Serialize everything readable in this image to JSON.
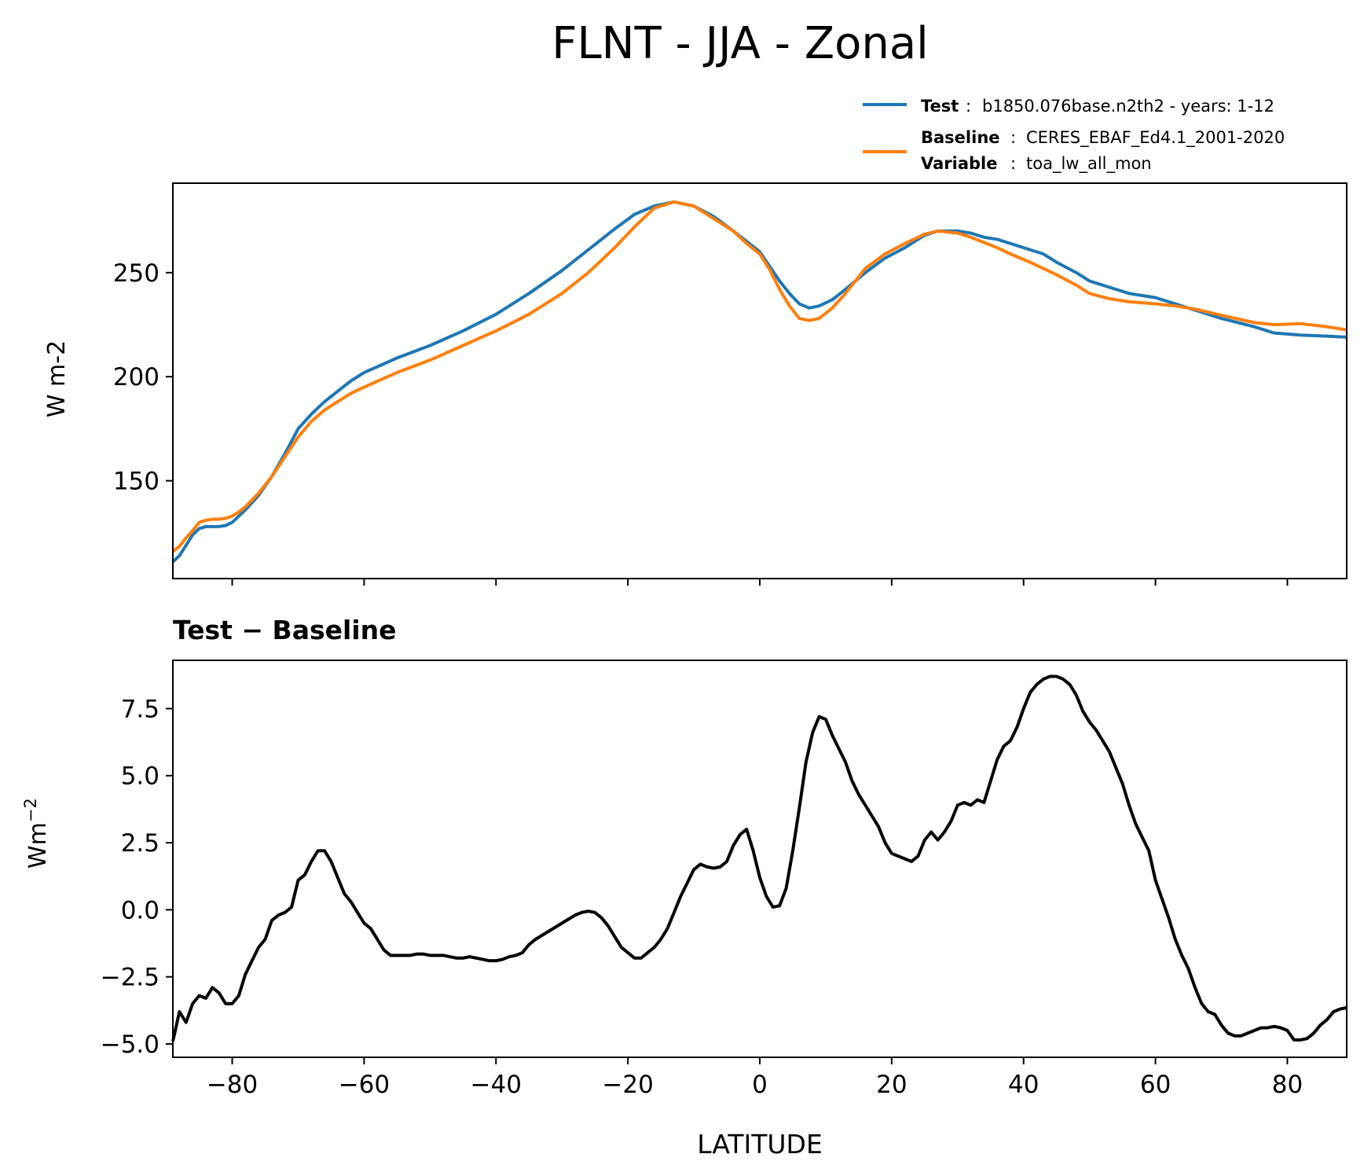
{
  "figure": {
    "title": "FLNT - JJA - Zonal"
  },
  "legend": {
    "test_label": "Test",
    "test_value": "b1850.076base.n2th2 - years: 1-12",
    "baseline_label": "Baseline",
    "baseline_value": "CERES_EBAF_Ed4.1_2001-2020",
    "variable_label": "Variable",
    "variable_value": "toa_lw_all_mon"
  },
  "colors": {
    "test": "#1f77b4",
    "baseline": "#ff7f0e",
    "diff": "#000000"
  },
  "chart_data": [
    {
      "type": "line",
      "title": "",
      "xlabel": "",
      "ylabel": "W m-2",
      "xlim": [
        -89,
        89
      ],
      "ylim": [
        103,
        293
      ],
      "yticks": [
        150,
        200,
        250
      ],
      "ytick_labels": [
        "150",
        "200",
        "250"
      ],
      "xticks": [
        -80,
        -60,
        -40,
        -20,
        0,
        20,
        40,
        60,
        80
      ],
      "grid": false,
      "legend_position": "above-right",
      "series": [
        {
          "name": "Test",
          "x": [
            -89,
            -88,
            -87,
            -86,
            -85,
            -84,
            -83,
            -82,
            -81,
            -80,
            -79,
            -78,
            -76,
            -74,
            -72,
            -70,
            -68,
            -66,
            -64,
            -62,
            -60,
            -55,
            -50,
            -45,
            -40,
            -35,
            -30,
            -26,
            -22,
            -19,
            -16,
            -13,
            -10,
            -7,
            -4,
            -2,
            0,
            1.5,
            3,
            4.5,
            6,
            7.5,
            9,
            11,
            13,
            16,
            19,
            22,
            25,
            27,
            30,
            32,
            34,
            36,
            38,
            41,
            43,
            45,
            48,
            50,
            53,
            56,
            60,
            63,
            66,
            70,
            75,
            78,
            82,
            86,
            89
          ],
          "y": [
            111,
            114,
            119,
            124,
            127,
            128,
            128,
            128,
            128.5,
            130,
            133,
            136,
            143,
            152,
            163,
            175,
            182,
            188,
            193,
            198,
            202,
            209,
            215,
            222,
            230,
            240,
            251,
            261,
            271,
            278,
            282,
            284,
            282,
            277,
            270,
            265,
            260,
            253,
            246,
            240,
            235,
            233,
            234,
            237,
            242,
            250,
            257,
            262,
            268,
            270,
            270,
            269,
            267,
            266,
            264,
            261,
            259,
            255,
            250,
            246,
            243,
            240,
            238,
            235,
            232,
            228,
            224,
            221,
            220,
            219.5,
            219
          ]
        },
        {
          "name": "Baseline",
          "x": [
            -89,
            -88,
            -87,
            -86,
            -85,
            -84,
            -83,
            -82,
            -81,
            -80,
            -79,
            -78,
            -76,
            -74,
            -72,
            -70,
            -68,
            -66,
            -64,
            -62,
            -60,
            -55,
            -50,
            -45,
            -40,
            -35,
            -30,
            -26,
            -22,
            -19,
            -16,
            -13,
            -10,
            -7,
            -4,
            -2,
            0,
            1.5,
            3,
            4.5,
            6,
            7.5,
            9,
            11,
            13,
            16,
            19,
            22,
            25,
            27,
            30,
            32,
            34,
            36,
            38,
            41,
            43,
            45,
            48,
            50,
            53,
            56,
            60,
            63,
            66,
            70,
            75,
            78,
            82,
            86,
            89
          ],
          "y": [
            116,
            118.5,
            122.5,
            126,
            130,
            131,
            131.5,
            131.5,
            132,
            133,
            135,
            137.5,
            144,
            152,
            161.5,
            171,
            178.5,
            184,
            188,
            192,
            195,
            202,
            208,
            215,
            222,
            230,
            240,
            250,
            262,
            272,
            281,
            284,
            282,
            276,
            270,
            264,
            259,
            251.5,
            242,
            234,
            228,
            227,
            228,
            233,
            240,
            252,
            259,
            264,
            268.5,
            270,
            269,
            267,
            264.5,
            262,
            259,
            255,
            252,
            249,
            244,
            240,
            237.5,
            236,
            235,
            234,
            232.5,
            229.5,
            226,
            225,
            225.5,
            224,
            222.5
          ]
        }
      ]
    },
    {
      "type": "line",
      "title": "Test − Baseline",
      "xlabel": "LATITUDE",
      "ylabel": "Wm⁻²",
      "xlim": [
        -89,
        89
      ],
      "ylim": [
        -5.5,
        9.3
      ],
      "yticks": [
        -5.0,
        -2.5,
        0.0,
        2.5,
        5.0,
        7.5
      ],
      "ytick_labels": [
        "−5.0",
        "−2.5",
        "0.0",
        "2.5",
        "5.0",
        "7.5"
      ],
      "xticks": [
        -80,
        -60,
        -40,
        -20,
        0,
        20,
        40,
        60,
        80
      ],
      "xtick_labels": [
        "−80",
        "−60",
        "−40",
        "−20",
        "0",
        "20",
        "40",
        "60",
        "80"
      ],
      "grid": false,
      "series": [
        {
          "name": "",
          "x": [
            -89,
            -88,
            -87,
            -86,
            -85,
            -84,
            -83,
            -82,
            -81,
            -80,
            -79,
            -78,
            -77,
            -76,
            -75,
            -74,
            -73,
            -72,
            -71,
            -70,
            -69,
            -68,
            -67,
            -66,
            -65,
            -64,
            -63,
            -62,
            -61,
            -60,
            -59,
            -58,
            -57,
            -56,
            -55,
            -54,
            -53,
            -52,
            -51,
            -50,
            -49,
            -48,
            -47,
            -46,
            -45,
            -44,
            -43,
            -42,
            -41,
            -40,
            -39,
            -38,
            -37,
            -36,
            -35,
            -34,
            -33,
            -32,
            -31,
            -30,
            -29,
            -28,
            -27,
            -26,
            -25,
            -24,
            -23,
            -22,
            -21,
            -20,
            -19,
            -18,
            -17,
            -16,
            -15,
            -14,
            -13,
            -12,
            -11,
            -10,
            -9,
            -8,
            -7,
            -6,
            -5,
            -4,
            -3,
            -2,
            -1,
            0,
            1,
            2,
            3,
            4,
            5,
            6,
            7,
            8,
            9,
            10,
            11,
            12,
            13,
            14,
            15,
            16,
            17,
            18,
            19,
            20,
            21,
            22,
            23,
            24,
            25,
            26,
            27,
            28,
            29,
            30,
            31,
            32,
            33,
            34,
            35,
            36,
            37,
            38,
            39,
            40,
            41,
            42,
            43,
            44,
            45,
            46,
            47,
            48,
            49,
            50,
            51,
            52,
            53,
            54,
            55,
            56,
            57,
            58,
            59,
            60,
            61,
            62,
            63,
            64,
            65,
            66,
            67,
            68,
            69,
            70,
            71,
            72,
            73,
            74,
            75,
            76,
            77,
            78,
            79,
            80,
            81,
            82,
            83,
            84,
            85,
            86,
            87,
            88,
            89
          ],
          "y": [
            -4.9,
            -3.8,
            -4.2,
            -3.5,
            -3.2,
            -3.3,
            -2.9,
            -3.1,
            -3.5,
            -3.5,
            -3.2,
            -2.4,
            -1.9,
            -1.4,
            -1.1,
            -0.4,
            -0.2,
            -0.1,
            0.1,
            1.1,
            1.3,
            1.8,
            2.2,
            2.2,
            1.8,
            1.2,
            0.6,
            0.3,
            -0.1,
            -0.5,
            -0.7,
            -1.1,
            -1.5,
            -1.7,
            -1.7,
            -1.7,
            -1.7,
            -1.65,
            -1.65,
            -1.7,
            -1.7,
            -1.7,
            -1.75,
            -1.8,
            -1.8,
            -1.75,
            -1.8,
            -1.85,
            -1.9,
            -1.9,
            -1.85,
            -1.75,
            -1.7,
            -1.6,
            -1.3,
            -1.1,
            -0.95,
            -0.8,
            -0.65,
            -0.5,
            -0.35,
            -0.2,
            -0.1,
            -0.05,
            -0.1,
            -0.3,
            -0.6,
            -1.0,
            -1.4,
            -1.6,
            -1.8,
            -1.8,
            -1.6,
            -1.4,
            -1.1,
            -0.7,
            -0.1,
            0.5,
            1.0,
            1.5,
            1.7,
            1.6,
            1.55,
            1.6,
            1.8,
            2.4,
            2.8,
            3.0,
            2.2,
            1.2,
            0.5,
            0.1,
            0.15,
            0.8,
            2.2,
            3.8,
            5.5,
            6.6,
            7.2,
            7.1,
            6.5,
            6.0,
            5.5,
            4.8,
            4.3,
            3.9,
            3.5,
            3.1,
            2.5,
            2.1,
            2.0,
            1.9,
            1.8,
            2.0,
            2.6,
            2.9,
            2.6,
            2.9,
            3.3,
            3.9,
            4.0,
            3.9,
            4.1,
            4.0,
            4.8,
            5.6,
            6.1,
            6.3,
            6.8,
            7.5,
            8.1,
            8.4,
            8.6,
            8.7,
            8.7,
            8.6,
            8.4,
            8.0,
            7.4,
            7.0,
            6.7,
            6.3,
            5.9,
            5.3,
            4.7,
            3.9,
            3.2,
            2.7,
            2.2,
            1.1,
            0.4,
            -0.3,
            -1.1,
            -1.7,
            -2.2,
            -2.9,
            -3.5,
            -3.8,
            -3.9,
            -4.3,
            -4.6,
            -4.7,
            -4.7,
            -4.6,
            -4.5,
            -4.4,
            -4.4,
            -4.35,
            -4.4,
            -4.5,
            -4.85,
            -4.85,
            -4.8,
            -4.6,
            -4.3,
            -4.1,
            -3.8,
            -3.7,
            -3.65
          ]
        }
      ]
    }
  ]
}
